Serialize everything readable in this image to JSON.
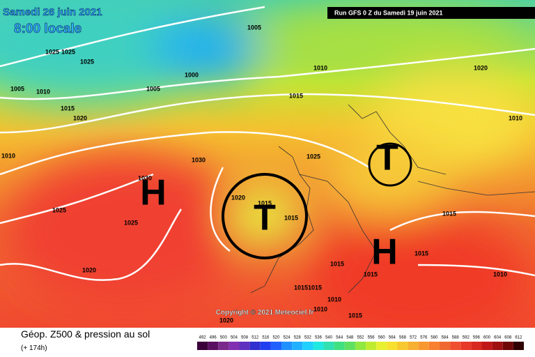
{
  "header": {
    "date": "Samedi 26 juin 2021",
    "time": "8:00 locale",
    "run": "Run GFS 0 Z du Samedi 19 juin 2021"
  },
  "map": {
    "isobars": [
      1005,
      1025,
      1025,
      1025,
      1005,
      1010,
      1005,
      1000,
      1010,
      1020,
      1015,
      1015,
      1020,
      1010,
      1010,
      1025,
      1030,
      1030,
      1020,
      1015,
      1025,
      1015,
      1025,
      1015,
      1015,
      1020,
      1015,
      1015,
      1010,
      1015,
      1015,
      1010,
      1010,
      1015,
      1020
    ],
    "highs": [
      "H",
      "H"
    ],
    "lows": [
      "T",
      "T"
    ],
    "copyright": "Copyright © 2021 Meteociel.fr"
  },
  "legend": {
    "title": "Géop. Z500 & pression au sol",
    "lead": "(+ 174h)",
    "scale": [
      492,
      496,
      500,
      504,
      508,
      512,
      516,
      520,
      524,
      528,
      532,
      536,
      540,
      544,
      548,
      552,
      556,
      560,
      564,
      568,
      572,
      576,
      580,
      584,
      588,
      592,
      596,
      600,
      604,
      608,
      612
    ]
  }
}
